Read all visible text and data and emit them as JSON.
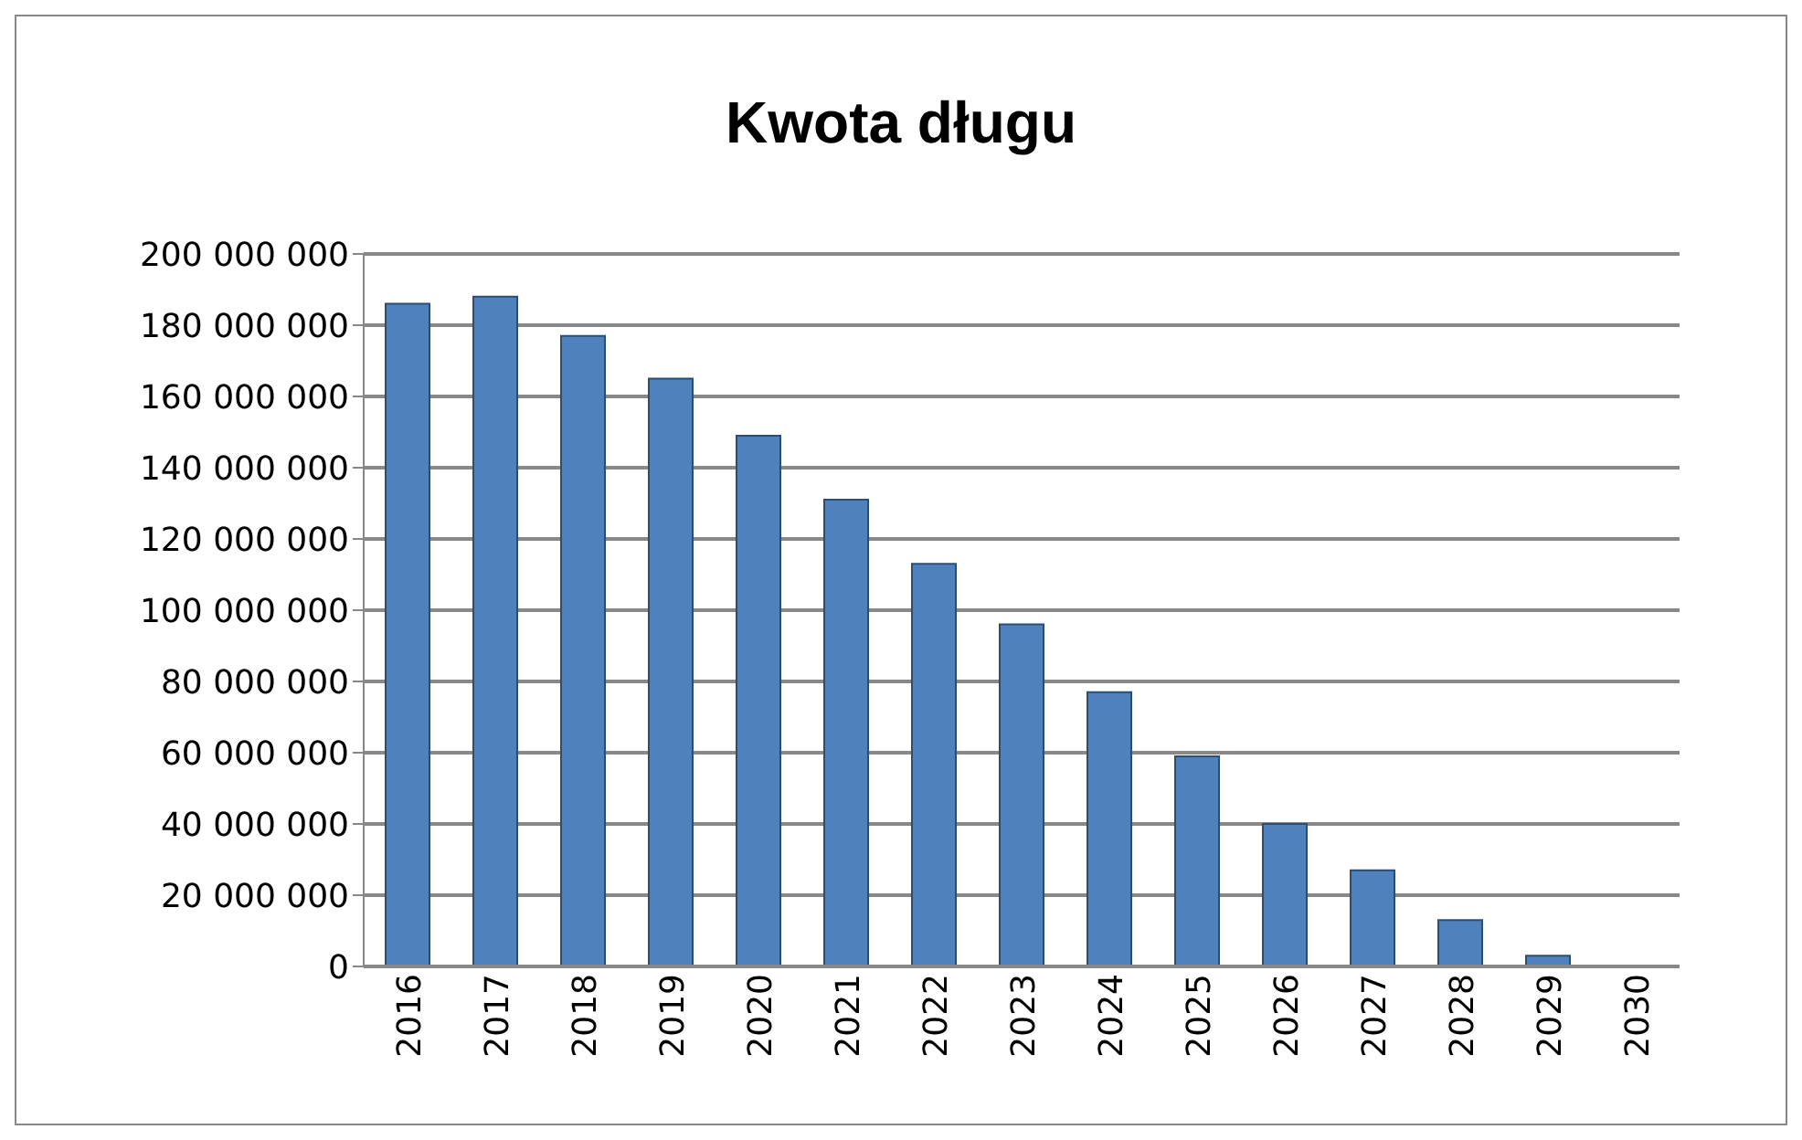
{
  "chart_data": {
    "type": "bar",
    "title": "Kwota długu",
    "categories": [
      "2016",
      "2017",
      "2018",
      "2019",
      "2020",
      "2021",
      "2022",
      "2023",
      "2024",
      "2025",
      "2026",
      "2027",
      "2028",
      "2029",
      "2030"
    ],
    "values": [
      186000000,
      188000000,
      177000000,
      165000000,
      149000000,
      131000000,
      113000000,
      96000000,
      77000000,
      59000000,
      40000000,
      27000000,
      13000000,
      3000000,
      0
    ],
    "color": "#4f81bd",
    "ylim": [
      0,
      200000000
    ],
    "yticks": [
      {
        "value": 0,
        "label": "0"
      },
      {
        "value": 20000000,
        "label": "20 000 000"
      },
      {
        "value": 40000000,
        "label": "40 000 000"
      },
      {
        "value": 60000000,
        "label": "60 000 000"
      },
      {
        "value": 80000000,
        "label": "80 000 000"
      },
      {
        "value": 100000000,
        "label": "100 000 000"
      },
      {
        "value": 120000000,
        "label": "120 000 000"
      },
      {
        "value": 140000000,
        "label": "140 000 000"
      },
      {
        "value": 160000000,
        "label": "160 000 000"
      },
      {
        "value": 180000000,
        "label": "180 000 000"
      },
      {
        "value": 200000000,
        "label": "200 000 000"
      }
    ],
    "grid": "y",
    "legend": false
  }
}
